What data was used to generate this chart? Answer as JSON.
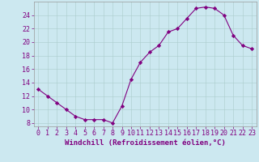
{
  "hours": [
    0,
    1,
    2,
    3,
    4,
    5,
    6,
    7,
    8,
    9,
    10,
    11,
    12,
    13,
    14,
    15,
    16,
    17,
    18,
    19,
    20,
    21,
    22,
    23
  ],
  "windchill": [
    13.0,
    12.0,
    11.0,
    10.0,
    9.0,
    8.5,
    8.5,
    8.5,
    8.0,
    10.5,
    14.5,
    17.0,
    18.5,
    19.5,
    21.5,
    22.0,
    23.5,
    25.0,
    25.2,
    25.0,
    24.0,
    21.0,
    19.5,
    19.0
  ],
  "line_color": "#800080",
  "marker": "D",
  "bg_color": "#cce8f0",
  "grid_color": "#aacccc",
  "xlabel": "Windchill (Refroidissement éolien,°C)",
  "ylim": [
    7.5,
    26.0
  ],
  "yticks": [
    8,
    10,
    12,
    14,
    16,
    18,
    20,
    22,
    24
  ],
  "xlim": [
    -0.5,
    23.5
  ],
  "xlabel_fontsize": 6.5,
  "tick_fontsize": 6.0,
  "color": "#800080"
}
